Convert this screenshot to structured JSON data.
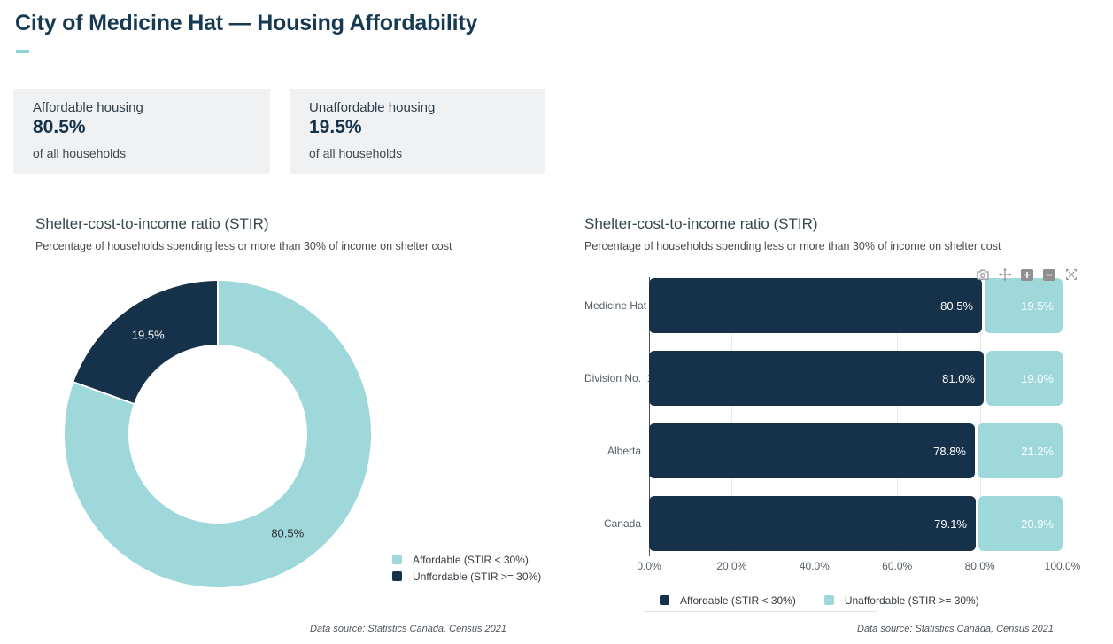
{
  "header": {
    "title": "City of Medicine Hat — Housing Affordability"
  },
  "cards": [
    {
      "label": "Affordable housing",
      "value": "80.5%",
      "sub": "of all households"
    },
    {
      "label": "Unaffordable housing",
      "value": "19.5%",
      "sub": "of all households"
    }
  ],
  "charts": {
    "donut": {
      "title": "Shelter-cost-to-income ratio (STIR)",
      "subtitle": "Percentage of households spending less or more than 30% of income on shelter cost",
      "footer": "Data source: Statistics Canada, Census 2021"
    },
    "bars": {
      "title": "Shelter-cost-to-income ratio (STIR)",
      "subtitle": "Percentage of households spending less or more than 30% of income on shelter cost",
      "footer": "Data source: Statistics Canada, Census 2021"
    }
  },
  "colors": {
    "dark_navy": "#16324a",
    "teal": "#9ed8db",
    "title_navy": "#173a53",
    "accent_underline": "#8ed3d8",
    "card_bg": "#eff1f2"
  },
  "modebar_icons": [
    "camera",
    "pan",
    "zoom-in",
    "zoom-out",
    "autoscale"
  ],
  "chart_data": [
    {
      "type": "pie",
      "title": "Shelter-cost-to-income ratio (STIR)",
      "labels": [
        "Affordable (STIR < 30%)",
        "Unffordable (STIR >= 30%)"
      ],
      "values": [
        80.5,
        19.5
      ],
      "colors": [
        "#9ed8db",
        "#16324a"
      ],
      "label_colors": [
        "#2e2e2e",
        "#ffffff"
      ],
      "hole": 0.58,
      "start_angle_deg": 0,
      "direction": "clockwise",
      "legend_position": "bottom-right",
      "value_suffix": "%"
    },
    {
      "type": "bar",
      "orientation": "horizontal",
      "stacked": true,
      "title": "Shelter-cost-to-income ratio (STIR)",
      "categories": [
        "Medicine Hat",
        "Division No.  1",
        "Alberta",
        "Canada"
      ],
      "series": [
        {
          "name": "Affordable (STIR < 30%)",
          "color": "#16324a",
          "values": [
            80.5,
            81.0,
            78.8,
            79.1
          ]
        },
        {
          "name": "Unaffordable (STIR >= 30%)",
          "color": "#9ed8db",
          "values": [
            19.5,
            19.0,
            21.2,
            20.9
          ]
        }
      ],
      "xticks": [
        "0.0%",
        "20.0%",
        "40.0%",
        "60.0%",
        "80.0%",
        "100.0%"
      ],
      "xlim": [
        0,
        100
      ],
      "grid": true,
      "legend_position": "bottom",
      "value_suffix": "%"
    }
  ]
}
